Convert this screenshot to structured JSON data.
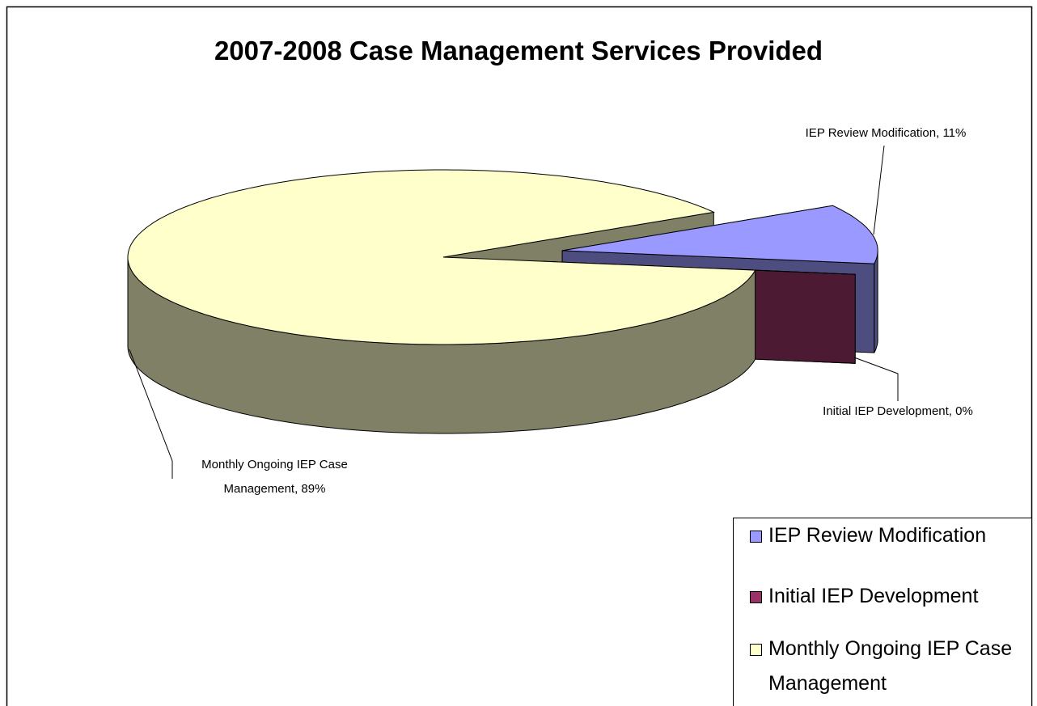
{
  "chart_data": {
    "type": "pie",
    "title": "2007-2008 Case Management Services Provided",
    "categories": [
      "IEP Review Modification",
      "Initial IEP Development",
      "Monthly Ongoing IEP Case Management"
    ],
    "values": [
      11,
      0,
      89
    ],
    "value_labels": [
      "IEP Review Modification, 11%",
      "Initial IEP Development, 0%",
      "Monthly Ongoing IEP Case Management, 89%"
    ],
    "colors": [
      "#9999ff",
      "#993366",
      "#ffffcc"
    ],
    "legend": "right"
  }
}
